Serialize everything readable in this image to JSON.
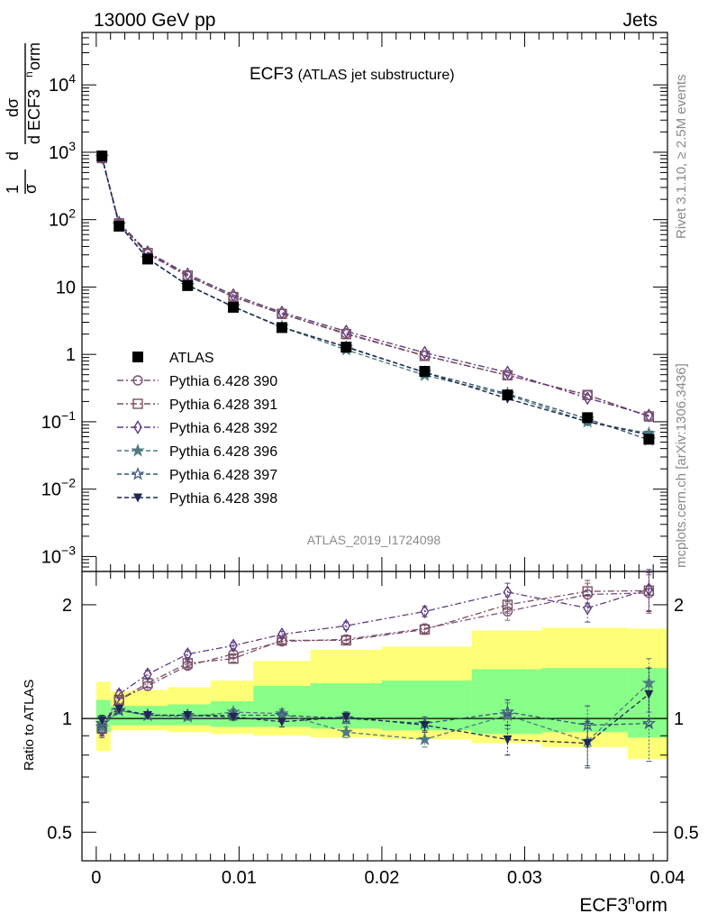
{
  "header": {
    "left": "13000 GeV pp",
    "right": "Jets"
  },
  "side": {
    "rivet": "Rivet 3.1.10, ≥ 2.5M events",
    "mcplots": "mcplots.cern.ch [arXiv:1306.3436]"
  },
  "main": {
    "title_main": "ECF3",
    "title_sub": "(ATLAS jet substructure)",
    "analysis_id": "ATLAS_2019_I1724098",
    "ylabel_parts": {
      "frac_num": "1",
      "frac_den": "σ",
      "d1": "d",
      "dsigma": "dσ",
      "d_ecf": "d ECF3",
      "sup_n": "n",
      "orm": "orm"
    }
  },
  "ratio": {
    "ylabel": "Ratio to ATLAS"
  },
  "xaxis": {
    "label_main": "ECF3",
    "label_sup": "n",
    "label_tail": "orm"
  },
  "colors": {
    "yellow": "#ffff77",
    "green": "#88ff88",
    "atlas": "#000000"
  },
  "chart_data": [
    {
      "type": "scatter",
      "yscale": "log",
      "xlim": [
        -0.001,
        0.04
      ],
      "ylim": [
        0.0006,
        60000
      ],
      "yticks": [
        {
          "v": 0.001,
          "b": "10",
          "e": "−3"
        },
        {
          "v": 0.01,
          "b": "10",
          "e": "−2"
        },
        {
          "v": 0.1,
          "b": "10",
          "e": "−1"
        },
        {
          "v": 1,
          "b": "1",
          "e": ""
        },
        {
          "v": 10,
          "b": "10",
          "e": ""
        },
        {
          "v": 100,
          "b": "10",
          "e": "2"
        },
        {
          "v": 1000,
          "b": "10",
          "e": "3"
        },
        {
          "v": 10000,
          "b": "10",
          "e": "4"
        }
      ],
      "x": [
        0.0004,
        0.0016,
        0.0036,
        0.0064,
        0.0096,
        0.013,
        0.0175,
        0.023,
        0.0288,
        0.0344,
        0.0387
      ],
      "series": [
        {
          "name": "ATLAS",
          "marker": "square-filled",
          "color": "#000000",
          "line": "none",
          "values": [
            880,
            80,
            26,
            10.5,
            5.0,
            2.5,
            1.28,
            0.56,
            0.25,
            0.115,
            0.055
          ]
        },
        {
          "name": "Pythia 6.428 390",
          "marker": "circle-open",
          "color": "#7a4f76",
          "line": "dashdot",
          "values": [
            830,
            87,
            31,
            14.5,
            7.2,
            4.0,
            2.05,
            0.96,
            0.49,
            0.25,
            0.12
          ]
        },
        {
          "name": "Pythia 6.428 391",
          "marker": "square-open",
          "color": "#7a4f5c",
          "line": "dashdot",
          "values": [
            820,
            88,
            32,
            14.8,
            7.1,
            4.0,
            2.0,
            0.95,
            0.49,
            0.25,
            0.12
          ]
        },
        {
          "name": "Pythia 6.428 392",
          "marker": "diamond-open",
          "color": "#5c3b82",
          "line": "dashdot",
          "values": [
            840,
            90,
            33,
            15.5,
            7.6,
            4.2,
            2.2,
            1.06,
            0.54,
            0.225,
            0.124
          ]
        },
        {
          "name": "Pythia 6.428 396",
          "marker": "star-filled",
          "color": "#4f7a80",
          "line": "dashed",
          "values": [
            840,
            84,
            26.5,
            10.6,
            5.1,
            2.55,
            1.17,
            0.49,
            0.25,
            0.1,
            0.067
          ]
        },
        {
          "name": "Pythia 6.428 397",
          "marker": "star-open",
          "color": "#3a5478",
          "line": "dashed",
          "values": [
            850,
            84,
            26.5,
            10.6,
            5.1,
            2.55,
            1.28,
            0.54,
            0.26,
            0.11,
            0.054
          ]
        },
        {
          "name": "Pythia 6.428 398",
          "marker": "triangle-down-filled",
          "color": "#1e2850",
          "line": "dashed",
          "values": [
            860,
            85,
            26.5,
            10.7,
            5.1,
            2.5,
            1.3,
            0.54,
            0.22,
            0.1,
            0.064
          ]
        }
      ]
    },
    {
      "type": "scatter",
      "yscale": "log",
      "xlim": [
        -0.001,
        0.04
      ],
      "ylim": [
        0.42,
        2.45
      ],
      "yticks": [
        {
          "v": 0.5,
          "label": "0.5"
        },
        {
          "v": 1,
          "label": "1"
        },
        {
          "v": 2,
          "label": "2"
        }
      ],
      "xticks": [
        {
          "v": 0,
          "label": "0"
        },
        {
          "v": 0.01,
          "label": "0.01"
        },
        {
          "v": 0.02,
          "label": "0.02"
        },
        {
          "v": 0.03,
          "label": "0.03"
        },
        {
          "v": 0.04,
          "label": "0.04"
        }
      ],
      "bins": [
        {
          "lo": 0.0,
          "hi": 0.001,
          "y_lo": 0.82,
          "y_hi": 1.25,
          "g_lo": 0.92,
          "g_hi": 1.12
        },
        {
          "lo": 0.001,
          "hi": 0.0025,
          "y_lo": 0.93,
          "y_hi": 1.18,
          "g_lo": 0.96,
          "g_hi": 1.08
        },
        {
          "lo": 0.0025,
          "hi": 0.005,
          "y_lo": 0.93,
          "y_hi": 1.19,
          "g_lo": 0.96,
          "g_hi": 1.08
        },
        {
          "lo": 0.005,
          "hi": 0.008,
          "y_lo": 0.92,
          "y_hi": 1.21,
          "g_lo": 0.96,
          "g_hi": 1.09
        },
        {
          "lo": 0.008,
          "hi": 0.011,
          "y_lo": 0.91,
          "y_hi": 1.26,
          "g_lo": 0.95,
          "g_hi": 1.11
        },
        {
          "lo": 0.011,
          "hi": 0.015,
          "y_lo": 0.9,
          "y_hi": 1.42,
          "g_lo": 0.95,
          "g_hi": 1.22
        },
        {
          "lo": 0.015,
          "hi": 0.02,
          "y_lo": 0.89,
          "y_hi": 1.52,
          "g_lo": 0.94,
          "g_hi": 1.24
        },
        {
          "lo": 0.02,
          "hi": 0.0263,
          "y_lo": 0.88,
          "y_hi": 1.55,
          "g_lo": 0.93,
          "g_hi": 1.26
        },
        {
          "lo": 0.0263,
          "hi": 0.0312,
          "y_lo": 0.86,
          "y_hi": 1.71,
          "g_lo": 0.91,
          "g_hi": 1.35
        },
        {
          "lo": 0.0312,
          "hi": 0.0372,
          "y_lo": 0.84,
          "y_hi": 1.74,
          "g_lo": 0.92,
          "g_hi": 1.36
        },
        {
          "lo": 0.0372,
          "hi": 0.04,
          "y_lo": 0.78,
          "y_hi": 1.73,
          "g_lo": 0.89,
          "g_hi": 1.36
        }
      ],
      "series": [
        {
          "name": "Pythia 6.428 390",
          "values": [
            0.94,
            1.12,
            1.22,
            1.38,
            1.48,
            1.6,
            1.62,
            1.73,
            1.92,
            2.13,
            2.15
          ],
          "err": [
            0.04,
            0.03,
            0.03,
            0.03,
            0.03,
            0.03,
            0.04,
            0.05,
            0.1,
            0.15,
            0.25
          ]
        },
        {
          "name": "Pythia 6.428 391",
          "values": [
            0.94,
            1.12,
            1.24,
            1.4,
            1.44,
            1.61,
            1.61,
            1.72,
            2.0,
            2.17,
            2.18
          ],
          "err": [
            0.04,
            0.03,
            0.03,
            0.03,
            0.03,
            0.03,
            0.04,
            0.05,
            0.1,
            0.15,
            0.25
          ]
        },
        {
          "name": "Pythia 6.428 392",
          "values": [
            0.93,
            1.16,
            1.31,
            1.48,
            1.56,
            1.67,
            1.76,
            1.92,
            2.16,
            1.96,
            2.2
          ],
          "err": [
            0.04,
            0.03,
            0.03,
            0.03,
            0.03,
            0.03,
            0.04,
            0.06,
            0.12,
            0.16,
            0.28
          ]
        },
        {
          "name": "Pythia 6.428 396",
          "values": [
            0.95,
            1.05,
            1.02,
            1.01,
            1.04,
            1.03,
            0.92,
            0.88,
            1.02,
            0.87,
            1.24
          ],
          "err": [
            0.03,
            0.02,
            0.02,
            0.02,
            0.02,
            0.03,
            0.03,
            0.04,
            0.08,
            0.12,
            0.2
          ]
        },
        {
          "name": "Pythia 6.428 397",
          "values": [
            0.97,
            1.05,
            1.02,
            1.02,
            1.02,
            1.02,
            1.0,
            0.97,
            1.04,
            0.96,
            0.97
          ],
          "err": [
            0.03,
            0.02,
            0.02,
            0.02,
            0.02,
            0.03,
            0.03,
            0.04,
            0.08,
            0.12,
            0.2
          ]
        },
        {
          "name": "Pythia 6.428 398",
          "values": [
            0.99,
            1.06,
            1.02,
            1.02,
            1.01,
            0.98,
            1.01,
            0.96,
            0.88,
            0.86,
            1.16
          ],
          "err": [
            0.03,
            0.02,
            0.02,
            0.02,
            0.02,
            0.03,
            0.03,
            0.04,
            0.08,
            0.12,
            0.2
          ]
        }
      ]
    }
  ]
}
